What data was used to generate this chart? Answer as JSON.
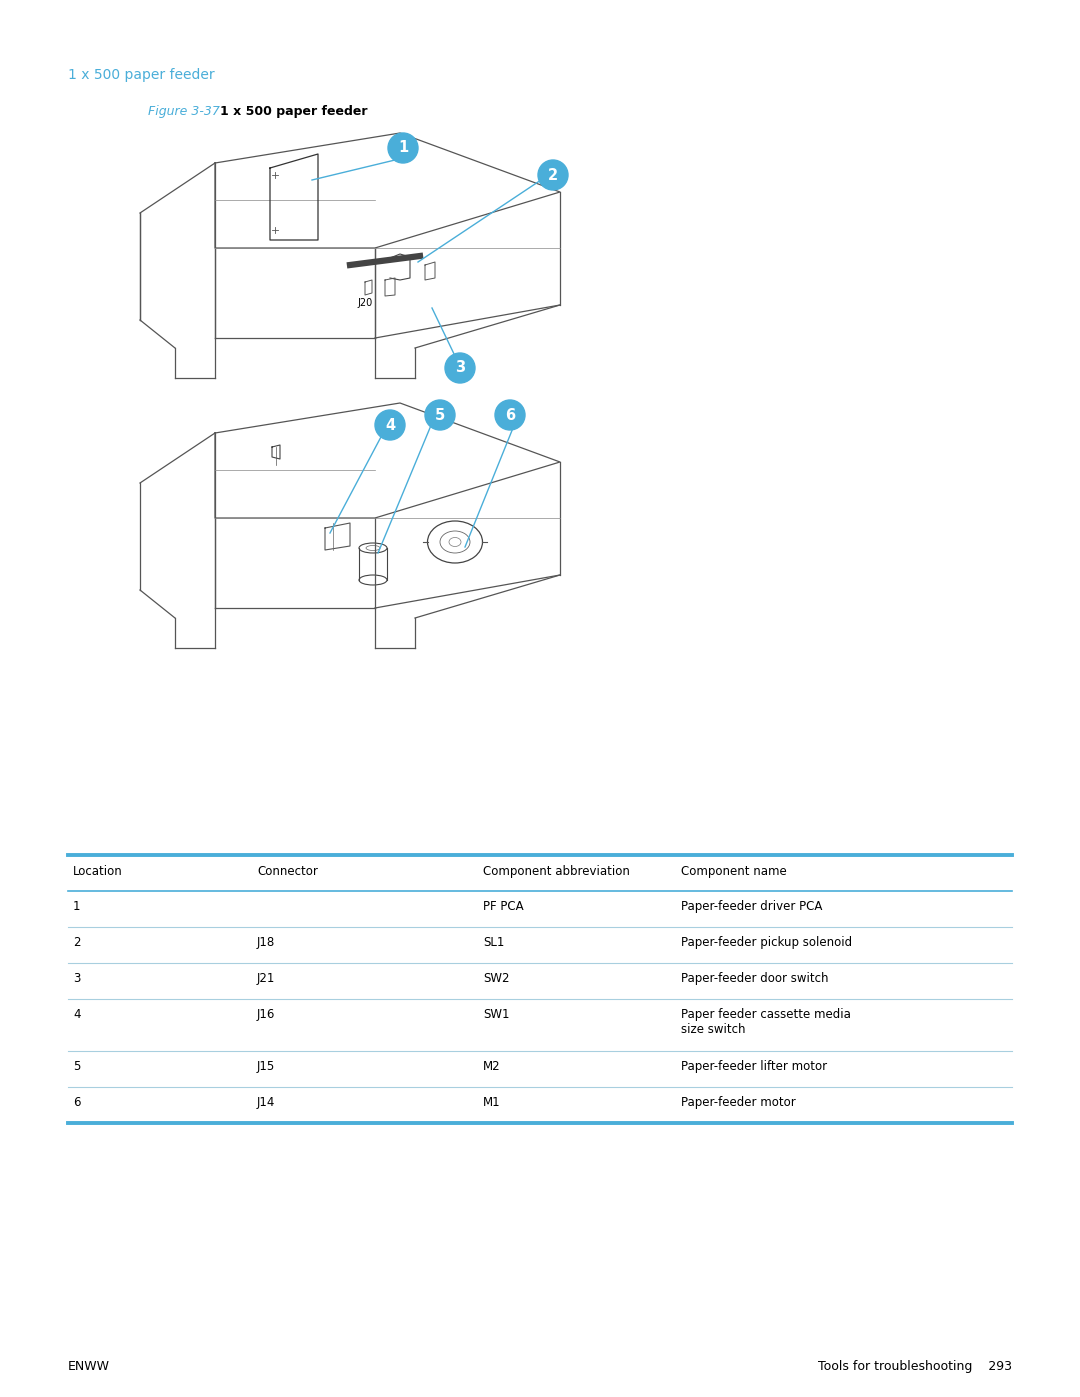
{
  "page_title": "1 x 500 paper feeder",
  "figure_label": "Figure 3-37",
  "figure_title": "1 x 500 paper feeder",
  "blue_color": "#4AAED9",
  "text_color": "#000000",
  "line_color": "#555555",
  "inner_line_color": "#888888",
  "table_header_line_color": "#4AAED9",
  "table_row_line_color": "#A8CFDF",
  "table_headers": [
    "Location",
    "Connector",
    "Component abbreviation",
    "Component name"
  ],
  "table_rows": [
    [
      "1",
      "",
      "PF PCA",
      "Paper-feeder driver PCA"
    ],
    [
      "2",
      "J18",
      "SL1",
      "Paper-feeder pickup solenoid"
    ],
    [
      "3",
      "J21",
      "SW2",
      "Paper-feeder door switch"
    ],
    [
      "4",
      "J16",
      "SW1",
      "Paper feeder cassette media\nsize switch"
    ],
    [
      "5",
      "J15",
      "M2",
      "Paper-feeder lifter motor"
    ],
    [
      "6",
      "J14",
      "M1",
      "Paper-feeder motor"
    ]
  ],
  "footer_left": "ENWW",
  "footer_right": "Tools for troubleshooting    293",
  "bubble_color": "#4AAED9",
  "bubble_text_color": "#FFFFFF"
}
